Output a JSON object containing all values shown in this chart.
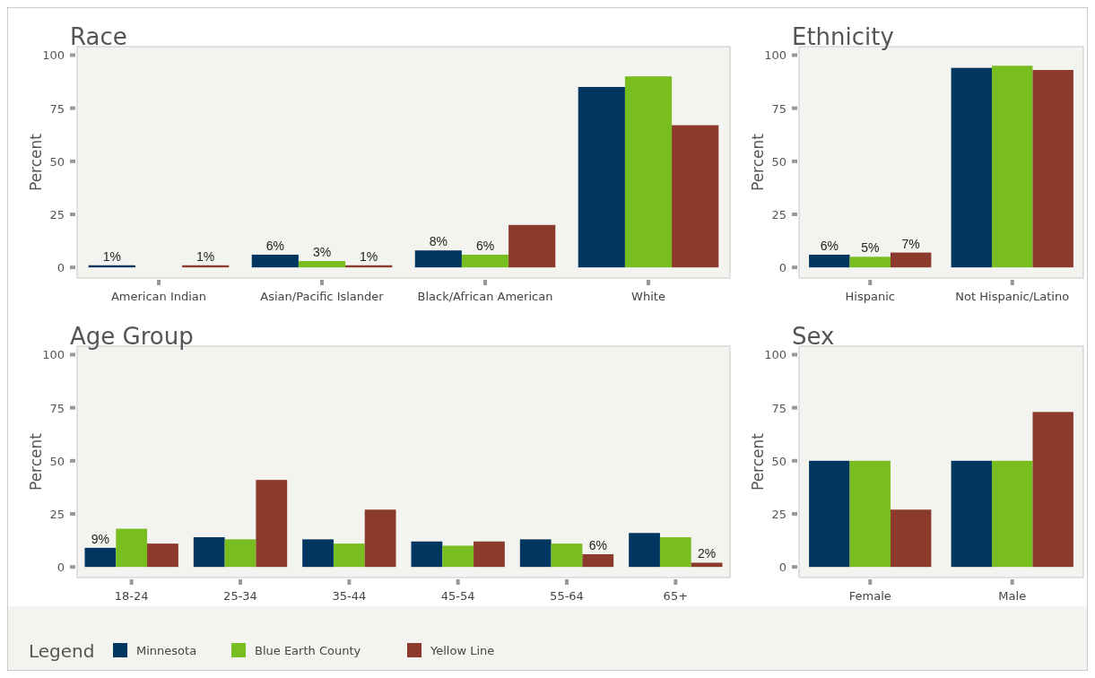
{
  "chart_data": [
    {
      "type": "bar",
      "title": "Race",
      "ylabel": "Percent",
      "categories": [
        "American Indian",
        "Asian/Pacific Islander",
        "Black/African American",
        "White"
      ],
      "ylim": [
        -5,
        104
      ],
      "yticks": [
        0,
        25,
        50,
        75,
        100
      ],
      "legend": "bottom",
      "legend_title": "Legend",
      "series": [
        {
          "name": "Minnesota",
          "color": "#003660",
          "values": [
            1,
            6,
            8,
            85
          ],
          "value_labels": [
            "1%",
            "6%",
            "8%",
            null
          ]
        },
        {
          "name": "Blue Earth County",
          "color": "#78be20",
          "values": [
            null,
            3,
            6,
            90
          ],
          "value_labels": [
            null,
            "3%",
            "6%",
            null
          ]
        },
        {
          "name": "Yellow Line",
          "color": "#8b3a2b",
          "values": [
            1,
            1,
            20,
            67
          ],
          "value_labels": [
            "1%",
            "1%",
            null,
            null
          ]
        }
      ]
    },
    {
      "type": "bar",
      "title": "Ethnicity",
      "ylabel": "Percent",
      "categories": [
        "Hispanic",
        "Not Hispanic/Latino"
      ],
      "ylim": [
        -5,
        104
      ],
      "yticks": [
        0,
        25,
        50,
        75,
        100
      ],
      "series": [
        {
          "color": "#003660",
          "values": [
            6,
            94
          ],
          "value_labels": [
            "6%",
            null
          ]
        },
        {
          "color": "#78be20",
          "values": [
            5,
            95
          ],
          "value_labels": [
            "5%",
            null
          ]
        },
        {
          "color": "#8b3a2b",
          "values": [
            7,
            93
          ],
          "value_labels": [
            "7%",
            null
          ]
        }
      ]
    },
    {
      "type": "bar",
      "title": "Age Group",
      "ylabel": "Percent",
      "categories": [
        "18-24",
        "25-34",
        "35-44",
        "45-54",
        "55-64",
        "65+"
      ],
      "ylim": [
        -5,
        104
      ],
      "yticks": [
        0,
        25,
        50,
        75,
        100
      ],
      "series": [
        {
          "color": "#003660",
          "values": [
            9,
            14,
            13,
            12,
            13,
            16
          ],
          "value_labels": [
            "9%",
            null,
            null,
            null,
            null,
            null
          ]
        },
        {
          "color": "#78be20",
          "values": [
            18,
            13,
            11,
            10,
            11,
            14
          ]
        },
        {
          "color": "#8b3a2b",
          "values": [
            11,
            41,
            27,
            12,
            6,
            2
          ],
          "value_labels": [
            null,
            null,
            null,
            null,
            "6%",
            "2%"
          ]
        }
      ]
    },
    {
      "type": "bar",
      "title": "Sex",
      "ylabel": "Percent",
      "categories": [
        "Female",
        "Male"
      ],
      "ylim": [
        -5,
        104
      ],
      "yticks": [
        0,
        25,
        50,
        75,
        100
      ],
      "series": [
        {
          "color": "#003660",
          "values": [
            50,
            50
          ]
        },
        {
          "color": "#78be20",
          "values": [
            50,
            50
          ]
        },
        {
          "color": "#8b3a2b",
          "values": [
            27,
            73
          ]
        }
      ]
    }
  ]
}
